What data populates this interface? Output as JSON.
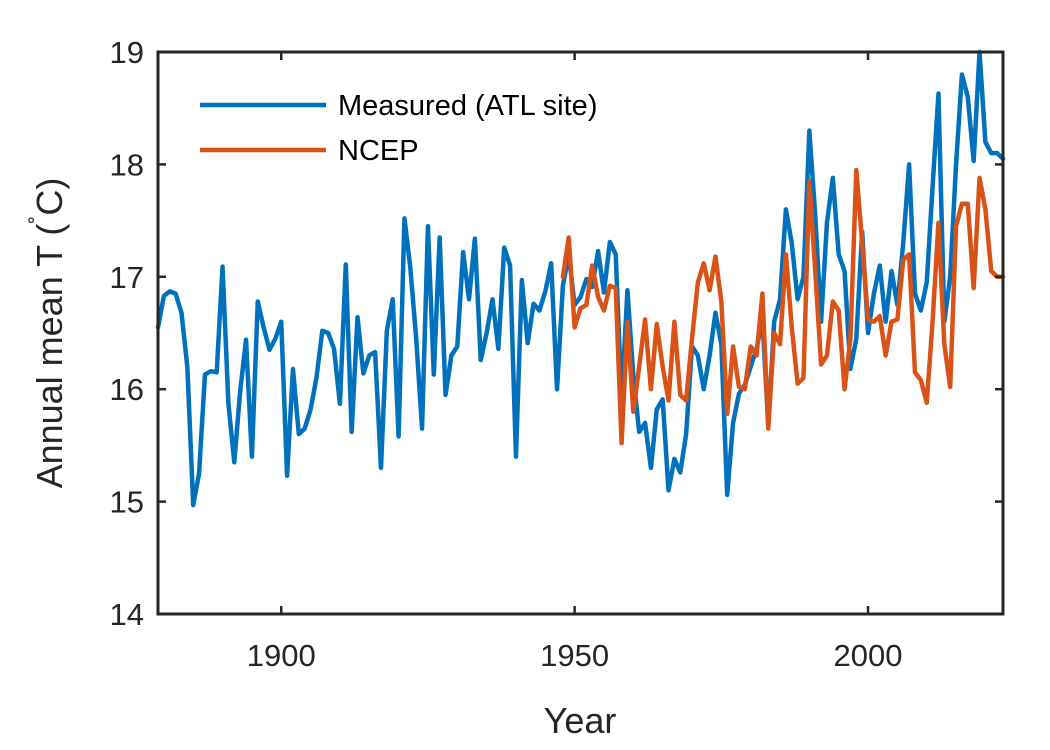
{
  "chart_data": {
    "type": "line",
    "title": "",
    "xlabel": "Year",
    "ylabel": "Annual mean T (˚C)",
    "ylabel_main": "Annual mean T (",
    "ylabel_degree": "˚",
    "ylabel_unit": "C)",
    "xlim": [
      1879,
      2023
    ],
    "ylim": [
      14,
      19
    ],
    "xticks": [
      1900,
      1950,
      2000
    ],
    "yticks": [
      14,
      15,
      16,
      17,
      18,
      19
    ],
    "grid": false,
    "legend": "top-left",
    "series": [
      {
        "name": "Measured (ATL site)",
        "color": "#0072BD",
        "x": [
          1879,
          1880,
          1881,
          1882,
          1883,
          1884,
          1885,
          1886,
          1887,
          1888,
          1889,
          1890,
          1891,
          1892,
          1893,
          1894,
          1895,
          1896,
          1897,
          1898,
          1899,
          1900,
          1901,
          1902,
          1903,
          1904,
          1905,
          1906,
          1907,
          1908,
          1909,
          1910,
          1911,
          1912,
          1913,
          1914,
          1915,
          1916,
          1917,
          1918,
          1919,
          1920,
          1921,
          1922,
          1923,
          1924,
          1925,
          1926,
          1927,
          1928,
          1929,
          1930,
          1931,
          1932,
          1933,
          1934,
          1935,
          1936,
          1937,
          1938,
          1939,
          1940,
          1941,
          1942,
          1943,
          1944,
          1945,
          1946,
          1947,
          1948,
          1949,
          1950,
          1951,
          1952,
          1953,
          1954,
          1955,
          1956,
          1957,
          1958,
          1959,
          1960,
          1961,
          1962,
          1963,
          1964,
          1965,
          1966,
          1967,
          1968,
          1969,
          1970,
          1971,
          1972,
          1973,
          1974,
          1975,
          1976,
          1977,
          1978,
          1979,
          1980,
          1981,
          1982,
          1983,
          1984,
          1985,
          1986,
          1987,
          1988,
          1989,
          1990,
          1991,
          1992,
          1993,
          1994,
          1995,
          1996,
          1997,
          1998,
          1999,
          2000,
          2001,
          2002,
          2003,
          2004,
          2005,
          2006,
          2007,
          2008,
          2009,
          2010,
          2011,
          2012,
          2013,
          2014,
          2015,
          2016,
          2017,
          2018,
          2019,
          2020,
          2021,
          2022,
          2023
        ],
        "values": [
          16.55,
          16.83,
          16.87,
          16.85,
          16.68,
          16.2,
          14.97,
          15.25,
          16.13,
          16.16,
          16.15,
          17.09,
          15.87,
          15.35,
          15.98,
          16.44,
          15.4,
          16.78,
          16.55,
          16.35,
          16.45,
          16.6,
          15.23,
          16.18,
          15.6,
          15.65,
          15.82,
          16.1,
          16.52,
          16.5,
          16.36,
          15.87,
          17.11,
          15.62,
          16.64,
          16.14,
          16.3,
          16.33,
          15.3,
          16.52,
          16.8,
          15.58,
          17.52,
          17.08,
          16.45,
          15.65,
          17.45,
          16.13,
          17.35,
          15.95,
          16.3,
          16.38,
          17.22,
          16.8,
          17.34,
          16.26,
          16.5,
          16.8,
          16.36,
          17.26,
          17.1,
          15.4,
          16.97,
          16.41,
          16.76,
          16.7,
          16.87,
          17.12,
          16.0,
          16.92,
          17.2,
          16.75,
          16.82,
          16.98,
          16.91,
          17.23,
          16.86,
          17.31,
          17.2,
          15.9,
          16.88,
          16.12,
          15.62,
          15.7,
          15.3,
          15.82,
          15.91,
          15.1,
          15.38,
          15.26,
          15.6,
          16.38,
          16.3,
          16.0,
          16.3,
          16.68,
          16.4,
          15.06,
          15.7,
          15.96,
          16.04,
          16.2,
          16.36,
          16.62,
          15.68,
          16.6,
          16.8,
          17.6,
          17.3,
          16.8,
          17.0,
          18.3,
          17.55,
          16.6,
          17.48,
          17.88,
          17.2,
          17.05,
          16.18,
          16.45,
          17.4,
          16.5,
          16.85,
          17.1,
          16.6,
          17.05,
          16.75,
          17.3,
          18.0,
          16.85,
          16.7,
          16.95,
          17.8,
          18.63,
          16.6,
          17.0,
          18.0,
          18.8,
          18.6,
          18.03,
          19.0,
          18.2,
          18.1,
          18.1,
          18.05
        ]
      },
      {
        "name": "NCEP",
        "color": "#D95319",
        "x": [
          1948,
          1949,
          1950,
          1951,
          1952,
          1953,
          1954,
          1955,
          1956,
          1957,
          1958,
          1959,
          1960,
          1961,
          1962,
          1963,
          1964,
          1965,
          1966,
          1967,
          1968,
          1969,
          1970,
          1971,
          1972,
          1973,
          1974,
          1975,
          1976,
          1977,
          1978,
          1979,
          1980,
          1981,
          1982,
          1983,
          1984,
          1985,
          1986,
          1987,
          1988,
          1989,
          1990,
          1991,
          1992,
          1993,
          1994,
          1995,
          1996,
          1997,
          1998,
          1999,
          2000,
          2001,
          2002,
          2003,
          2004,
          2005,
          2006,
          2007,
          2008,
          2009,
          2010,
          2011,
          2012,
          2013,
          2014,
          2015,
          2016,
          2017,
          2018,
          2019,
          2020,
          2021,
          2022,
          2023
        ],
        "values": [
          17.0,
          17.35,
          16.55,
          16.72,
          16.75,
          17.1,
          16.82,
          16.7,
          16.92,
          16.9,
          15.52,
          16.6,
          15.8,
          16.2,
          16.62,
          16.0,
          16.58,
          16.2,
          15.9,
          16.6,
          15.95,
          15.9,
          16.45,
          16.95,
          17.12,
          16.88,
          17.18,
          16.78,
          15.78,
          16.38,
          16.02,
          16.0,
          16.38,
          16.3,
          16.85,
          15.65,
          16.5,
          16.4,
          17.2,
          16.55,
          16.05,
          16.1,
          17.85,
          17.05,
          16.22,
          16.3,
          16.78,
          16.7,
          16.0,
          16.45,
          17.95,
          17.3,
          16.62,
          16.6,
          16.65,
          16.3,
          16.6,
          16.62,
          17.15,
          17.2,
          16.15,
          16.08,
          15.88,
          16.6,
          17.48,
          16.4,
          16.02,
          17.45,
          17.65,
          17.65,
          16.9,
          17.88,
          17.6,
          17.05,
          17.0,
          17.0
        ]
      }
    ]
  }
}
